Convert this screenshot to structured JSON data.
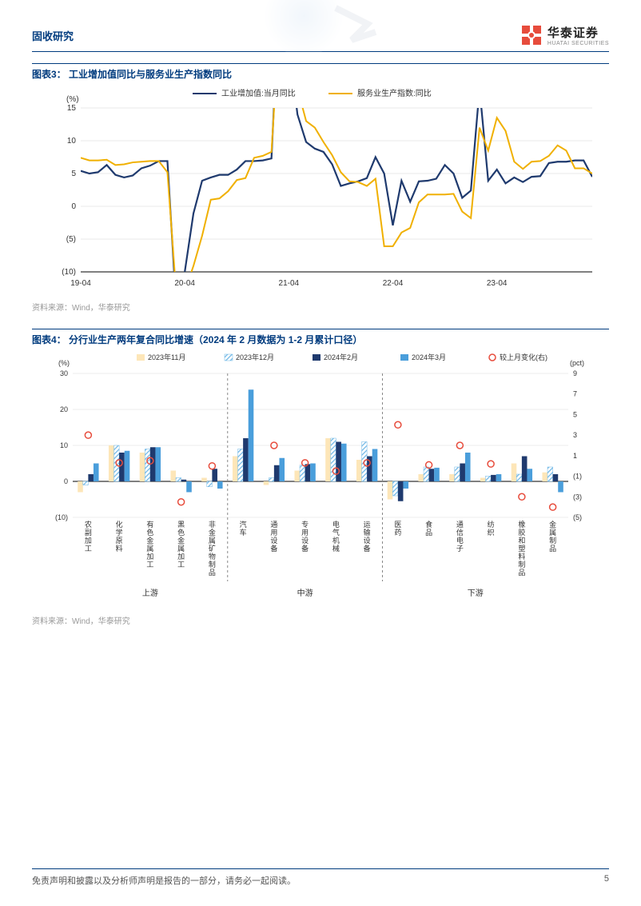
{
  "header": {
    "section": "固收研究",
    "brand": "华泰证券",
    "brand_en": "HUATAI SECURITIES"
  },
  "chart3": {
    "title": "图表3：  工业增加值同比与服务业生产指数同比",
    "ylabel": "(%)",
    "ylim": [
      -10,
      15
    ],
    "yticks": [
      -10,
      -5,
      0,
      5,
      10,
      15
    ],
    "ytick_labels": [
      "(10)",
      "(5)",
      "0",
      "5",
      "10",
      "15"
    ],
    "xticks": [
      "19-04",
      "20-04",
      "21-04",
      "22-04",
      "23-04"
    ],
    "series": [
      {
        "name": "工业增加值:当月同比",
        "color": "#1f3a6e",
        "width": 2.2,
        "y": [
          5.4,
          5.0,
          5.2,
          6.3,
          4.8,
          4.4,
          4.7,
          5.8,
          6.2,
          6.9,
          6.9,
          -15,
          -10,
          -1.1,
          3.9,
          4.4,
          4.8,
          4.8,
          5.6,
          6.9,
          6.9,
          7.0,
          7.3,
          35,
          25,
          14,
          9.8,
          8.8,
          8.3,
          6.4,
          3.1,
          3.5,
          3.8,
          4.3,
          7.5,
          5.0,
          -2.9,
          3.9,
          0.7,
          3.8,
          3.9,
          4.2,
          6.3,
          5.0,
          1.3,
          2.4,
          18,
          3.9,
          5.6,
          3.5,
          4.4,
          3.7,
          4.5,
          4.6,
          6.6,
          6.8,
          6.8,
          7.0,
          7.0,
          4.5
        ]
      },
      {
        "name": "服务业生产指数:同比",
        "color": "#f0b000",
        "width": 2,
        "y": [
          7.4,
          7.0,
          7.0,
          7.1,
          6.3,
          6.4,
          6.7,
          6.8,
          6.9,
          6.9,
          5.2,
          -13,
          -13,
          -9.1,
          -4.5,
          1.0,
          1.2,
          2.3,
          4.0,
          4.3,
          7.4,
          7.7,
          8.3,
          30,
          25,
          18,
          13,
          12,
          9.8,
          7.8,
          5.2,
          3.8,
          3.7,
          3.1,
          4.2,
          -6.1,
          -6.1,
          -4.0,
          -3.3,
          0.6,
          1.8,
          1.8,
          1.8,
          1.9,
          -0.8,
          -1.8,
          12,
          8.5,
          13.5,
          11.5,
          6.8,
          5.7,
          6.8,
          6.9,
          7.7,
          9.3,
          8.5,
          5.8,
          5.8,
          5.0
        ]
      }
    ],
    "legend_pos": "top-center",
    "background_color": "#ffffff",
    "grid_color": "#dcdcdc",
    "axis_color": "#000000"
  },
  "chart4": {
    "title": "图表4：  分行业生产两年复合同比增速（2024 年 2 月数据为 1-2 月累计口径）",
    "ylabel_left": "(%)",
    "ylabel_right": "(pct)",
    "left_lim": [
      -10,
      30
    ],
    "left_ticks": [
      -10,
      0,
      10,
      20,
      30
    ],
    "left_labels": [
      "(10)",
      "0",
      "10",
      "20",
      "30"
    ],
    "right_lim": [
      -5,
      9
    ],
    "right_ticks": [
      -5,
      -3,
      -1,
      1,
      3,
      5,
      7,
      9
    ],
    "right_labels": [
      "(5)",
      "(3)",
      "(1)",
      "1",
      "3",
      "5",
      "7",
      "9"
    ],
    "legend": [
      {
        "label": "2023年11月",
        "color": "#fde6b8",
        "type": "bar"
      },
      {
        "label": "2023年12月",
        "color": "#6fb7e6",
        "type": "bar_hatch"
      },
      {
        "label": "2024年2月",
        "color": "#1f3a6e",
        "type": "bar"
      },
      {
        "label": "2024年3月",
        "color": "#4a9edb",
        "type": "bar"
      },
      {
        "label": "较上月变化(右)",
        "color": "#e74c3c",
        "type": "marker"
      }
    ],
    "groups": [
      {
        "name": "上游",
        "items": [
          {
            "label": "农副加工",
            "a": -3,
            "b": -1,
            "c": 2,
            "d": 5,
            "chg": 3
          },
          {
            "label": "化学原料",
            "a": 10,
            "b": 10,
            "c": 8,
            "d": 8.5,
            "chg": 0.3
          },
          {
            "label": "有色金属加工",
            "a": 8,
            "b": 9,
            "c": 9.5,
            "d": 9.5,
            "chg": 0.5
          },
          {
            "label": "黑色金属加工",
            "a": 3,
            "b": 1,
            "c": 0.5,
            "d": -3,
            "chg": -3.5
          },
          {
            "label": "非金属矿物制品",
            "a": 1,
            "b": -1.5,
            "c": 3.5,
            "d": -2,
            "chg": 0
          }
        ]
      },
      {
        "name": "中游",
        "items": [
          {
            "label": "汽车",
            "a": 7,
            "b": 9,
            "c": 12,
            "d": 25.5,
            "chg": null
          },
          {
            "label": "通用设备",
            "a": -1,
            "b": 1,
            "c": 4.5,
            "d": 6.5,
            "chg": 2
          },
          {
            "label": "专用设备",
            "a": 3,
            "b": 4.5,
            "c": 4.8,
            "d": 5,
            "chg": 0.3
          },
          {
            "label": "电气机械",
            "a": 12,
            "b": 12,
            "c": 11,
            "d": 10.5,
            "chg": -0.5
          },
          {
            "label": "运输设备",
            "a": 6,
            "b": 11,
            "c": 7,
            "d": 9,
            "chg": 0.3
          }
        ]
      },
      {
        "name": "下游",
        "items": [
          {
            "label": "医药",
            "a": -5,
            "b": -4,
            "c": -5.5,
            "d": -2,
            "chg": 4
          },
          {
            "label": "食品",
            "a": 2,
            "b": 4,
            "c": 3.5,
            "d": 3.8,
            "chg": 0.1
          },
          {
            "label": "通信电子",
            "a": 2,
            "b": 4,
            "c": 5,
            "d": 8,
            "chg": 2
          },
          {
            "label": "纺织",
            "a": 1,
            "b": 1.5,
            "c": 1.8,
            "d": 2,
            "chg": 0.2
          },
          {
            "label": "橡胶和塑料制品",
            "a": 5,
            "b": 2,
            "c": 7,
            "d": 3.5,
            "chg": -3
          },
          {
            "label": "金属制品",
            "a": 2.5,
            "b": 4,
            "c": 2,
            "d": -3,
            "chg": -4
          }
        ]
      }
    ],
    "bar_width": 0.2,
    "colors": {
      "a": "#fde6b8",
      "b": "#6fb7e6",
      "c": "#1f3a6e",
      "d": "#4a9edb",
      "marker": "#e74c3c"
    },
    "divider_color": "#888888"
  },
  "source": "资料来源：Wind，华泰研究",
  "footer": {
    "disclaimer": "免责声明和披露以及分析师声明是报告的一部分，请务必一起阅读。",
    "page": "5"
  }
}
